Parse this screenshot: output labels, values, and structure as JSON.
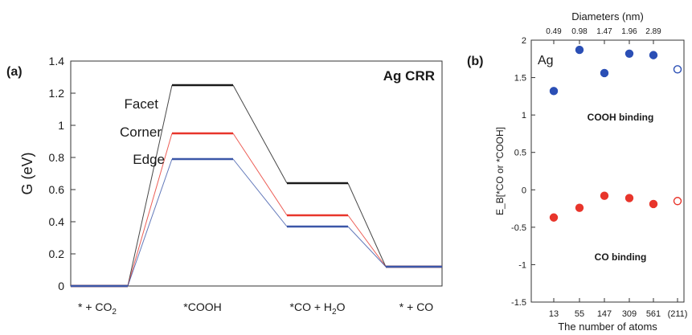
{
  "chart_data": [
    {
      "panel_label": "(a)",
      "type": "line",
      "title": "Ag CRR",
      "ylabel": "G (eV)",
      "ylim": [
        0,
        1.4
      ],
      "yticks": [
        "0",
        "0.2",
        "0.4",
        "0.6",
        "0.8",
        "1",
        "1.2",
        "1.4"
      ],
      "categories": [
        "* + CO₂",
        "*COOH",
        "*CO + H₂O",
        "* + CO"
      ],
      "series": [
        {
          "name": "Facet",
          "color": "#1a1a1a",
          "values": [
            0,
            1.25,
            0.64,
            0.12
          ]
        },
        {
          "name": "Corner",
          "color": "#e8352b",
          "values": [
            0,
            0.95,
            0.44,
            0.12
          ]
        },
        {
          "name": "Edge",
          "color": "#3b57a8",
          "values": [
            0,
            0.79,
            0.37,
            0.12
          ]
        }
      ]
    },
    {
      "panel_label": "(b)",
      "type": "scatter",
      "annotation": "Ag",
      "xlabel": "The number of atoms",
      "x2label": "Diameters (nm)",
      "ylabel": "E_B[*CO or *COOH]",
      "ylim": [
        -1.5,
        2
      ],
      "yticks": [
        "-1.5",
        "-1",
        "-0.5",
        "0",
        "0.5",
        "1",
        "1.5",
        "2"
      ],
      "categories": [
        "13",
        "55",
        "147",
        "309",
        "561",
        "(211)"
      ],
      "top_ticks": [
        "0.49",
        "0.98",
        "1.47",
        "1.96",
        "2.89"
      ],
      "series": [
        {
          "name": "COOH binding",
          "color": "#2b4fb5",
          "values": [
            1.32,
            1.87,
            1.56,
            1.82,
            1.8,
            1.61
          ],
          "open_last": true
        },
        {
          "name": "CO binding",
          "color": "#e8352b",
          "values": [
            -0.37,
            -0.24,
            -0.08,
            -0.11,
            -0.19,
            -0.15
          ],
          "open_last": true
        }
      ]
    }
  ]
}
